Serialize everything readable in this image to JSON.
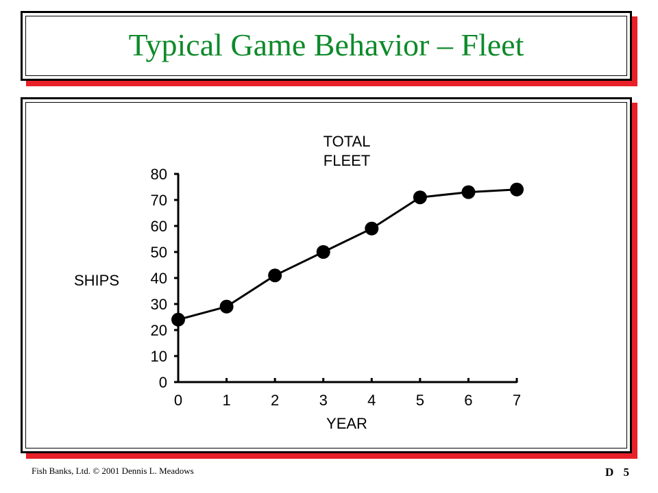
{
  "slide": {
    "title": "Typical Game Behavior – Fleet",
    "footer_left": "Fish Banks, Ltd. © 2001 Dennis L. Meadows",
    "footer_right": "D 5"
  },
  "colors": {
    "title": "#0e8a2a",
    "frame_shadow": "#e8202a"
  },
  "chart_data": {
    "type": "line",
    "title_lines": [
      "TOTAL",
      "FLEET"
    ],
    "xlabel": "YEAR",
    "ylabel": "SHIPS",
    "x": [
      0,
      1,
      2,
      3,
      4,
      5,
      6,
      7
    ],
    "xticks": [
      "0",
      "1",
      "2",
      "3",
      "4",
      "5",
      "6",
      "7"
    ],
    "yticks": [
      "0",
      "10",
      "20",
      "30",
      "40",
      "50",
      "60",
      "70",
      "80"
    ],
    "xlim": [
      0,
      7
    ],
    "ylim": [
      0,
      80
    ],
    "series": [
      {
        "values": [
          24,
          29,
          41,
          50,
          59,
          71,
          73,
          74
        ]
      }
    ],
    "grid": false
  }
}
